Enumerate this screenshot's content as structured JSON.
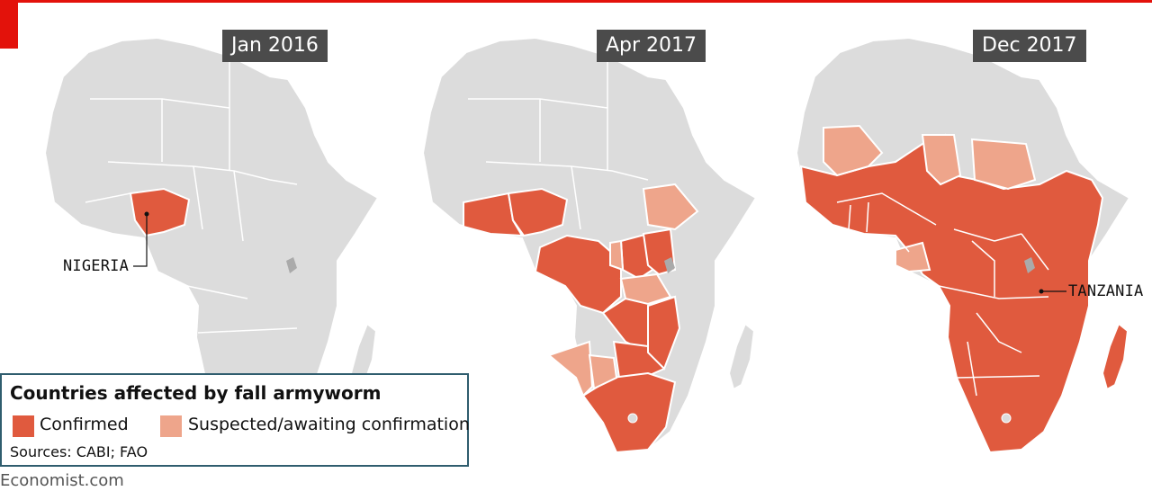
{
  "panels": [
    {
      "label": "Jan 2016"
    },
    {
      "label": "Apr 2017"
    },
    {
      "label": "Dec 2017"
    }
  ],
  "callouts": {
    "nigeria": "NIGERIA",
    "tanzania": "TANZANIA"
  },
  "legend": {
    "title": "Countries affected by fall armyworm",
    "confirmed": "Confirmed",
    "suspected": "Suspected/awaiting confirmation",
    "sources": "Sources: CABI; FAO"
  },
  "brand": "Economist.com",
  "colors": {
    "confirmed": "#e05a3e",
    "suspected": "#eea58b",
    "unaffected": "#dcdcdc",
    "accent_red": "#e3120b",
    "label_bg": "#4b4b4b",
    "legend_border": "#2f5d6e"
  }
}
